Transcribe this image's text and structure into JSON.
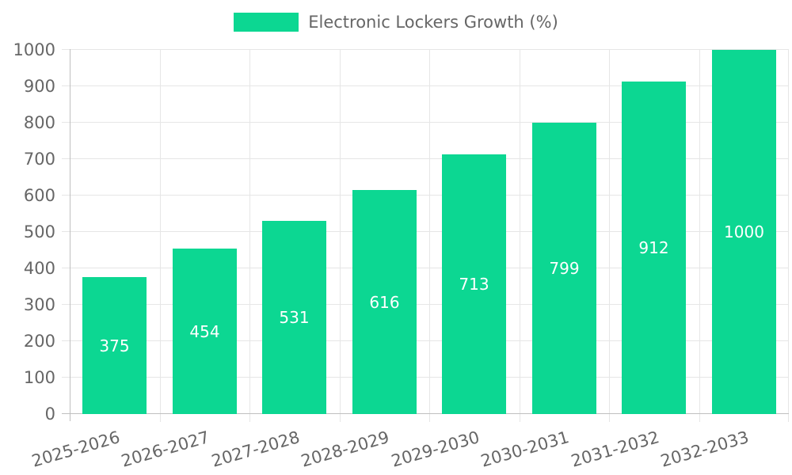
{
  "legend": {
    "label": "Electronic Lockers Growth (%)"
  },
  "chart_data": {
    "type": "bar",
    "title": "Electronic Lockers Growth (%)",
    "legend_entries": [
      "Electronic Lockers Growth (%)"
    ],
    "legend_position": "top-center",
    "categories": [
      "2025-2026",
      "2026-2027",
      "2027-2028",
      "2028-2029",
      "2029-2030",
      "2030-2031",
      "2031-2032",
      "2032-2033"
    ],
    "values": [
      375,
      454,
      531,
      616,
      713,
      799,
      912,
      1000
    ],
    "value_labels": [
      "375",
      "454",
      "531",
      "616",
      "713",
      "799",
      "912",
      "1000"
    ],
    "value_label_position": "inside-center",
    "xlabel": "",
    "ylabel": "",
    "ylim": [
      0,
      1000
    ],
    "yticks": [
      0,
      100,
      200,
      300,
      400,
      500,
      600,
      700,
      800,
      900,
      1000
    ],
    "grid": true,
    "grid_style": "boundary-offset-vertical-and-horizontal",
    "x_label_rotation_deg": -16,
    "colors": {
      "bar": "#0cd792",
      "grid_line": "#e6e6e6",
      "axis_zero_line": "#bfbfbf",
      "axis_text": "#666666",
      "value_label_text": "#ffffff",
      "background": "#ffffff"
    }
  }
}
